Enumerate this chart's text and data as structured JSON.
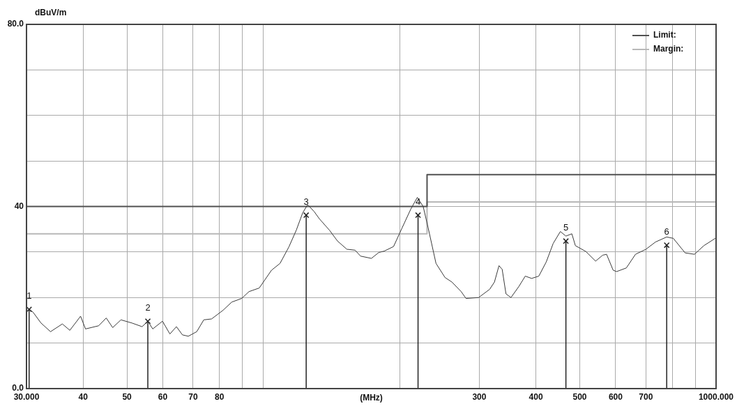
{
  "chart_data": {
    "type": "line",
    "ylabel": "dBuV/m",
    "xlabel": "(MHz)",
    "log": "x",
    "grid": true,
    "legend": "top right",
    "xlim": [
      30,
      1000
    ],
    "xticks": [
      {
        "value": 30,
        "label": "30.000"
      },
      40,
      50,
      60,
      70,
      80,
      {
        "value": 90,
        "label": null
      },
      {
        "value": 100,
        "label": null
      },
      {
        "value": 200,
        "label": null
      },
      300,
      400,
      500,
      600,
      700,
      {
        "value": 800,
        "label": null
      },
      {
        "value": 900,
        "label": null
      },
      {
        "value": 1000,
        "label": "1000.000"
      }
    ],
    "ylim": [
      0,
      80
    ],
    "yticks": [
      {
        "value": 0,
        "label": "0.0"
      },
      {
        "value": 10,
        "label": null
      },
      {
        "value": 20,
        "label": null
      },
      {
        "value": 30,
        "label": null
      },
      40,
      {
        "value": 50,
        "label": null
      },
      {
        "value": 60,
        "label": null
      },
      {
        "value": 70,
        "label": null
      },
      {
        "value": 80,
        "label": "80.0"
      }
    ],
    "series": [
      {
        "color": "#3a3a3a",
        "x": [
          30.2,
          31,
          32.3,
          33.9,
          36,
          37.4,
          39.5,
          40.5,
          43.3,
          45,
          46.5,
          48.5,
          51.3,
          54,
          55.6,
          57,
          59.9,
          62.2,
          64.3,
          66.3,
          68.3,
          71.3,
          73.9,
          76.9,
          81.5,
          85.2,
          89.6,
          93,
          98,
          104.3,
          108.9,
          113.9,
          118.3,
          122.2,
          125.3,
          129.5,
          133,
          140,
          145.9,
          153,
          159.5,
          164,
          173.3,
          180,
          185,
          194,
          202.6,
          211.7,
          218.9,
          225.5,
          231.3,
          240.7,
          252,
          261,
          273.6,
          280.4,
          299,
          316.2,
          324,
          331.6,
          337,
          343.6,
          352.4,
          366.7,
          379,
          391.5,
          406,
          421.6,
          436.9,
          453,
          466,
          480.3,
          489,
          516,
          542,
          561.8,
          573,
          592.6,
          603,
          633.6,
          663.9,
          700,
          735,
          778,
          804.6,
          854.4,
          896,
          940,
          996
        ],
        "values": [
          17.7,
          16.8,
          14.4,
          12.5,
          14.2,
          12.8,
          15.9,
          13.1,
          13.8,
          15.5,
          13.4,
          15.1,
          14.4,
          13.6,
          14.8,
          13.1,
          14.8,
          12,
          13.6,
          11.8,
          11.5,
          12.5,
          15.1,
          15.3,
          17.2,
          19,
          19.8,
          21.3,
          22.1,
          26,
          27.5,
          31.1,
          34.8,
          38.6,
          40.4,
          38.9,
          37.3,
          34.8,
          32.4,
          30.6,
          30.4,
          29.1,
          28.6,
          29.9,
          30.2,
          31.2,
          35.3,
          39.4,
          42,
          40,
          35.3,
          27.5,
          24.4,
          23.4,
          21.3,
          19.8,
          20,
          21.8,
          23.4,
          27,
          26.2,
          20.8,
          20,
          22.4,
          24.7,
          24.2,
          24.7,
          27.8,
          31.9,
          34.5,
          33.5,
          34,
          31.4,
          30.1,
          28,
          29.3,
          29.5,
          26,
          25.7,
          26.5,
          29.5,
          30.6,
          32.2,
          33.3,
          33,
          29.8,
          29.5,
          31.4,
          33
        ]
      },
      {
        "name": "Limit:",
        "color": "#505050",
        "x": [
          30,
          230,
          230,
          1000
        ],
        "values": [
          40,
          40,
          47,
          47
        ]
      },
      {
        "name": "Margin:",
        "color": "#b8b8b8",
        "x": [
          30,
          230,
          230,
          1000
        ],
        "values": [
          34,
          34,
          41,
          41
        ]
      },
      {
        "type": "lollipop",
        "color": "#222222",
        "marker": "cross",
        "x": [
          30.4,
          55.6,
          124.4,
          219.7,
          466,
          778
        ],
        "values": [
          17.4,
          14.8,
          38.1,
          38.1,
          32.4,
          31.5
        ]
      }
    ],
    "annotations": [
      {
        "text": "1",
        "x": 30.4,
        "y": 17.4
      },
      {
        "text": "2",
        "x": 55.6,
        "y": 14.8
      },
      {
        "text": "3",
        "x": 124.4,
        "y": 38.1
      },
      {
        "text": "4",
        "x": 219.7,
        "y": 38.1
      },
      {
        "text": "5",
        "x": 466,
        "y": 32.4
      },
      {
        "text": "6",
        "x": 778,
        "y": 31.5
      }
    ]
  }
}
